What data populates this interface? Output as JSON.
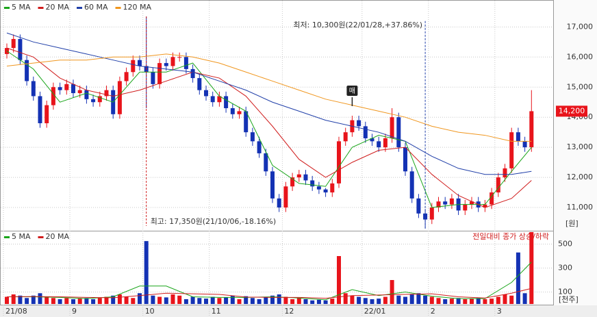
{
  "chart_data": [
    {
      "type": "candlestick",
      "y_unit": "[원]",
      "up_color": "#e8141b",
      "down_color": "#1432b4",
      "categories": [
        "21/08",
        null,
        null,
        null,
        null,
        null,
        null,
        null,
        null,
        null,
        "9",
        null,
        null,
        null,
        null,
        null,
        null,
        null,
        null,
        null,
        null,
        "10",
        null,
        null,
        null,
        null,
        null,
        null,
        null,
        null,
        null,
        "11",
        null,
        null,
        null,
        null,
        null,
        null,
        null,
        null,
        null,
        null,
        "12",
        null,
        null,
        null,
        null,
        null,
        null,
        null,
        null,
        null,
        null,
        null,
        "22/01",
        null,
        null,
        null,
        null,
        null,
        null,
        null,
        null,
        null,
        "2",
        null,
        null,
        null,
        null,
        null,
        null,
        null,
        null,
        null,
        "3",
        null,
        null,
        null,
        null,
        null
      ],
      "open": [
        16100,
        16300,
        16600,
        15900,
        15200,
        14700,
        13800,
        14400,
        15000,
        14900,
        15100,
        14800,
        14900,
        14600,
        14500,
        14700,
        14900,
        14100,
        15200,
        15500,
        15900,
        15700,
        15500,
        15100,
        15800,
        15700,
        16000,
        16000,
        15600,
        15300,
        14900,
        14700,
        14500,
        14700,
        14300,
        14100,
        14200,
        13500,
        13200,
        12800,
        12200,
        11300,
        11000,
        11700,
        12000,
        12100,
        11900,
        11700,
        11600,
        11500,
        11800,
        13200,
        13500,
        13900,
        13700,
        13300,
        13200,
        13000,
        13300,
        14000,
        13000,
        12200,
        11300,
        10800,
        10600,
        11000,
        11200,
        11100,
        11300,
        10900,
        11100,
        11200,
        11000,
        11100,
        11500,
        12000,
        12300,
        13500,
        13200,
        13000
      ],
      "high": [
        16450,
        16750,
        16750,
        16050,
        15350,
        14850,
        14550,
        15150,
        15150,
        15250,
        15250,
        15050,
        15050,
        14750,
        14850,
        15050,
        15050,
        15350,
        15650,
        16050,
        16050,
        17350,
        15650,
        15950,
        15950,
        16150,
        16150,
        16150,
        15750,
        15450,
        15050,
        14850,
        14850,
        14850,
        14450,
        14350,
        14350,
        13650,
        13350,
        12950,
        12350,
        11450,
        11850,
        12150,
        12250,
        12250,
        12050,
        11850,
        11650,
        11950,
        13350,
        13650,
        14050,
        14050,
        13850,
        13450,
        13350,
        13450,
        14300,
        14150,
        13150,
        12350,
        11450,
        10950,
        11150,
        11350,
        11350,
        11450,
        11450,
        11250,
        11350,
        11350,
        11250,
        11650,
        12150,
        12450,
        13650,
        13650,
        13350,
        14900
      ],
      "low": [
        15950,
        16150,
        15750,
        15050,
        14550,
        13650,
        13650,
        14250,
        14750,
        14750,
        14650,
        14650,
        14450,
        14350,
        14350,
        14550,
        13950,
        13950,
        15050,
        15350,
        15550,
        14300,
        14950,
        14950,
        15550,
        15550,
        15850,
        15450,
        15150,
        14750,
        14550,
        14350,
        14350,
        14150,
        13950,
        13950,
        13350,
        13050,
        12650,
        12050,
        11150,
        10850,
        10850,
        11550,
        11850,
        11750,
        11550,
        11450,
        11350,
        11350,
        11650,
        13050,
        13350,
        13550,
        13150,
        13050,
        12850,
        12850,
        13150,
        12850,
        12050,
        11150,
        10650,
        10300,
        10450,
        10850,
        10950,
        10950,
        10750,
        10750,
        10950,
        10850,
        10850,
        10950,
        11350,
        11850,
        12150,
        13050,
        12850,
        12850
      ],
      "close": [
        16300,
        16600,
        15900,
        15200,
        14700,
        13800,
        14400,
        15000,
        14900,
        15100,
        14800,
        14900,
        14600,
        14500,
        14700,
        14900,
        14100,
        15200,
        15500,
        15900,
        15700,
        15500,
        15100,
        15800,
        15700,
        16000,
        16000,
        15600,
        15300,
        14900,
        14700,
        14500,
        14700,
        14300,
        14100,
        14200,
        13500,
        13200,
        12800,
        12200,
        11300,
        11000,
        11700,
        12000,
        12100,
        11900,
        11700,
        11600,
        11500,
        11800,
        13200,
        13500,
        13900,
        13700,
        13300,
        13200,
        13000,
        13300,
        14000,
        13000,
        12200,
        11300,
        10800,
        10600,
        11000,
        11200,
        11100,
        11300,
        10900,
        11100,
        11200,
        11000,
        11100,
        11500,
        12000,
        12300,
        13500,
        13200,
        13000,
        14200
      ],
      "ylim": [
        10250,
        17850
      ],
      "yticks": [
        {
          "value": 11000,
          "label": "11,000"
        },
        {
          "value": 12000,
          "label": "12,000"
        },
        {
          "value": 13000,
          "label": "13,000"
        },
        {
          "value": 14000,
          "label": "14,000"
        },
        {
          "value": 15000,
          "label": "15,000"
        },
        {
          "value": 16000,
          "label": "16,000"
        },
        {
          "value": 17000,
          "label": "17,000"
        }
      ],
      "series": [
        {
          "name": "5 MA",
          "color": "#1aa51a",
          "x": [
            0,
            4,
            8,
            12,
            16,
            20,
            24,
            28,
            32,
            36,
            40,
            44,
            48,
            52,
            56,
            60,
            64,
            68,
            72,
            76,
            79
          ],
          "values": [
            16200,
            15600,
            14500,
            14800,
            14500,
            15500,
            15500,
            15800,
            14700,
            14200,
            12400,
            11800,
            11700,
            13000,
            13400,
            13200,
            11000,
            11100,
            11100,
            12200,
            13000
          ]
        },
        {
          "name": "20 MA",
          "color": "#d01c1c",
          "x": [
            0,
            4,
            8,
            12,
            16,
            20,
            24,
            28,
            32,
            36,
            40,
            44,
            48,
            52,
            56,
            60,
            64,
            68,
            72,
            76,
            79
          ],
          "values": [
            16300,
            16000,
            15300,
            14900,
            14700,
            14900,
            15200,
            15500,
            15300,
            14700,
            13700,
            12600,
            12000,
            12500,
            12900,
            13000,
            12100,
            11400,
            11000,
            11300,
            11900
          ]
        },
        {
          "name": "60 MA",
          "color": "#1f3ea8",
          "x": [
            0,
            4,
            8,
            12,
            16,
            20,
            24,
            28,
            32,
            36,
            40,
            44,
            48,
            52,
            56,
            60,
            64,
            68,
            72,
            76,
            79
          ],
          "values": [
            16800,
            16500,
            16300,
            16100,
            15900,
            15700,
            15600,
            15500,
            15200,
            14900,
            14500,
            14200,
            13900,
            13700,
            13500,
            13200,
            12700,
            12300,
            12100,
            12100,
            12200
          ]
        },
        {
          "name": "120 MA",
          "color": "#f0961e",
          "x": [
            0,
            4,
            8,
            12,
            16,
            20,
            24,
            28,
            32,
            36,
            40,
            44,
            48,
            52,
            56,
            60,
            64,
            68,
            72,
            76,
            79
          ],
          "values": [
            15700,
            15800,
            15900,
            15900,
            16000,
            16000,
            16100,
            16000,
            15800,
            15500,
            15200,
            14900,
            14600,
            14400,
            14200,
            14000,
            13700,
            13500,
            13400,
            13200,
            13200
          ]
        }
      ],
      "annotations": [
        {
          "text": "최고: 17,350원(21/10/06,-18.16%)",
          "value": 17350
        },
        {
          "text": "최저: 10,300원(22/01/28,+37.86%)",
          "value": 10300
        }
      ],
      "last_price": {
        "value": 14200,
        "label": "14,200"
      },
      "signal": {
        "label": "매",
        "index": 52
      }
    },
    {
      "type": "bar",
      "y_unit": "[천주]",
      "note": "전일대비 종가 상승/하락",
      "values": [
        60,
        80,
        70,
        50,
        70,
        90,
        60,
        50,
        40,
        50,
        40,
        45,
        50,
        40,
        50,
        60,
        70,
        80,
        60,
        50,
        90,
        525,
        70,
        60,
        55,
        80,
        70,
        40,
        60,
        50,
        45,
        60,
        50,
        55,
        70,
        40,
        65,
        50,
        40,
        60,
        70,
        80,
        60,
        40,
        50,
        40,
        30,
        35,
        30,
        45,
        400,
        90,
        70,
        60,
        50,
        40,
        45,
        60,
        200,
        70,
        60,
        80,
        90,
        70,
        60,
        50,
        40,
        45,
        50,
        40,
        45,
        50,
        40,
        45,
        60,
        80,
        70,
        430,
        90,
        600
      ],
      "ylim": [
        0,
        600
      ],
      "yticks": [
        100,
        300,
        500
      ],
      "series": [
        {
          "name": "5 MA",
          "color": "#1aa51a",
          "x": [
            0,
            4,
            8,
            12,
            16,
            20,
            24,
            28,
            32,
            36,
            40,
            44,
            48,
            52,
            56,
            60,
            64,
            68,
            72,
            76,
            79
          ],
          "values": [
            60,
            60,
            55,
            45,
            60,
            150,
            150,
            60,
            55,
            55,
            60,
            50,
            35,
            120,
            70,
            100,
            65,
            45,
            45,
            180,
            350
          ]
        },
        {
          "name": "20 MA",
          "color": "#d01c1c",
          "x": [
            0,
            4,
            8,
            12,
            16,
            20,
            24,
            28,
            32,
            36,
            40,
            44,
            48,
            52,
            56,
            60,
            64,
            68,
            72,
            76,
            79
          ],
          "values": [
            60,
            62,
            60,
            55,
            52,
            70,
            90,
            85,
            80,
            58,
            55,
            55,
            48,
            70,
            75,
            80,
            85,
            60,
            50,
            90,
            130
          ]
        }
      ]
    }
  ]
}
